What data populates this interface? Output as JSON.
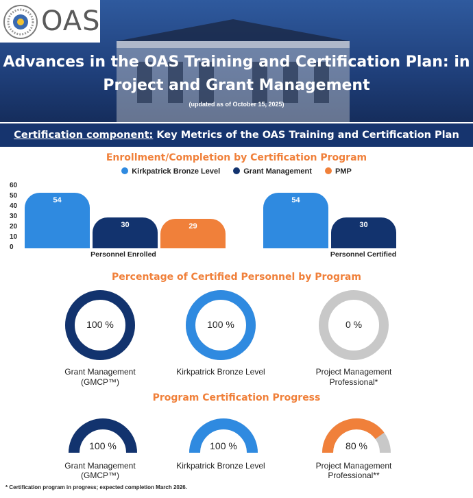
{
  "header": {
    "logo_text": "OAS",
    "title_line1": "Advances in the OAS Training and Certification Plan: in",
    "title_line2": "Project and Grant Management",
    "updated": "(updated as of October 15, 2025)"
  },
  "banner": {
    "lead": "Certification component:",
    "rest": " Key Metrics of the OAS Training and Certification Plan"
  },
  "colors": {
    "kirkpatrick": "#2f8ae0",
    "grant": "#12336e",
    "pmp": "#f0803a",
    "track": "#c8c8c8"
  },
  "chart_data": [
    {
      "type": "bar",
      "title": "Enrollment/Completion by Certification Program",
      "legend": [
        "Kirkpatrick Bronze Level",
        "Grant Management",
        "PMP"
      ],
      "yticks": [
        "60",
        "50",
        "40",
        "30",
        "20",
        "10",
        "0"
      ],
      "ylim": [
        0,
        60
      ],
      "groups": [
        {
          "label": "Personnel Enrolled",
          "values": [
            54,
            30,
            29
          ]
        },
        {
          "label": "Personnel Certified",
          "values": [
            54,
            30
          ]
        }
      ]
    },
    {
      "type": "pie",
      "title": "Percentage of Certified Personnel by Program",
      "items": [
        {
          "name_line1": "Grant Management",
          "name_line2": "(GMCP™)",
          "value": 100,
          "label": "100 %"
        },
        {
          "name_line1": "Kirkpatrick Bronze Level",
          "name_line2": "",
          "value": 100,
          "label": "100 %"
        },
        {
          "name_line1": "Project Management",
          "name_line2": "Professional*",
          "value": 0,
          "label": "0 %"
        }
      ]
    },
    {
      "type": "pie",
      "title": "Program Certification Progress",
      "items": [
        {
          "name_line1": "Grant Management",
          "name_line2": "(GMCP™)",
          "value": 100,
          "label": "100 %"
        },
        {
          "name_line1": "Kirkpatrick Bronze Level",
          "name_line2": "",
          "value": 100,
          "label": "100 %"
        },
        {
          "name_line1": "Project Management",
          "name_line2": "Professional**",
          "value": 80,
          "label": "80 %"
        }
      ]
    }
  ],
  "footnote": "* Certification program in progress; expected completion March 2026."
}
